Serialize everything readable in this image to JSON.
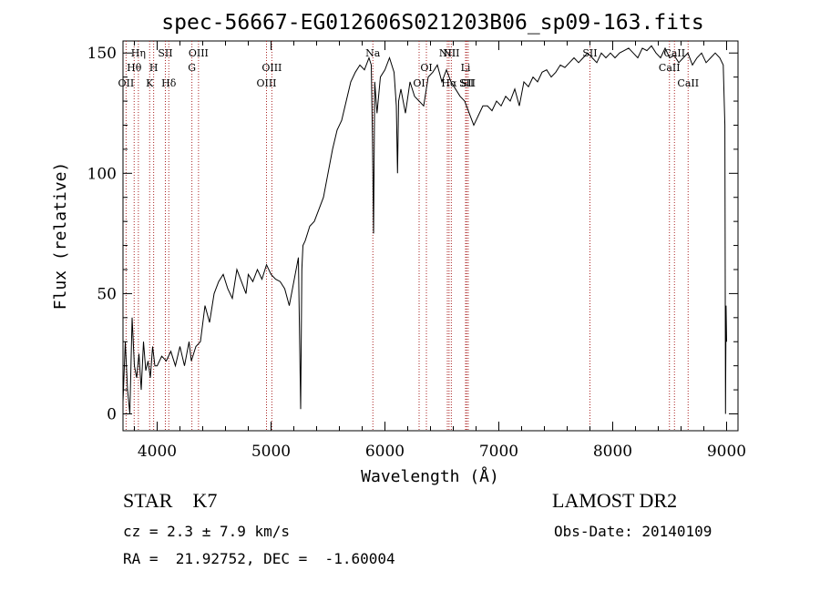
{
  "chart_data": {
    "type": "line",
    "title": "spec-56667-EG012606S021203B06_sp09-163.fits",
    "xlabel": "Wavelength (Å)",
    "ylabel": "Flux (relative)",
    "xlim": [
      3700,
      9100
    ],
    "ylim": [
      -7,
      155
    ],
    "x_ticks": [
      4000,
      5000,
      6000,
      7000,
      8000,
      9000
    ],
    "y_ticks": [
      0,
      50,
      100,
      150
    ],
    "grid": false,
    "series": [
      {
        "color": "#000000",
        "x": [
          3700,
          3720,
          3740,
          3760,
          3780,
          3800,
          3820,
          3840,
          3860,
          3880,
          3900,
          3920,
          3940,
          3960,
          3980,
          4000,
          4040,
          4080,
          4120,
          4160,
          4200,
          4240,
          4280,
          4300,
          4340,
          4380,
          4420,
          4460,
          4500,
          4540,
          4580,
          4620,
          4660,
          4700,
          4740,
          4780,
          4800,
          4840,
          4880,
          4920,
          4960,
          5000,
          5040,
          5080,
          5120,
          5160,
          5200,
          5240,
          5260,
          5270,
          5280,
          5300,
          5340,
          5380,
          5420,
          5460,
          5500,
          5540,
          5580,
          5620,
          5660,
          5700,
          5740,
          5780,
          5820,
          5860,
          5880,
          5890,
          5900,
          5910,
          5930,
          5960,
          6000,
          6040,
          6080,
          6100,
          6110,
          6120,
          6140,
          6180,
          6220,
          6260,
          6300,
          6340,
          6380,
          6420,
          6460,
          6500,
          6540,
          6580,
          6620,
          6660,
          6700,
          6740,
          6780,
          6820,
          6860,
          6900,
          6940,
          6980,
          7020,
          7060,
          7100,
          7140,
          7180,
          7220,
          7260,
          7300,
          7340,
          7380,
          7420,
          7460,
          7500,
          7540,
          7580,
          7620,
          7660,
          7700,
          7740,
          7780,
          7820,
          7860,
          7900,
          7940,
          7980,
          8020,
          8060,
          8100,
          8140,
          8180,
          8220,
          8260,
          8300,
          8340,
          8380,
          8420,
          8460,
          8500,
          8540,
          8580,
          8620,
          8660,
          8700,
          8740,
          8780,
          8820,
          8860,
          8900,
          8940,
          8970,
          8985,
          8990,
          8995,
          9000
        ],
        "y": [
          5,
          30,
          10,
          0,
          40,
          20,
          15,
          25,
          10,
          30,
          18,
          22,
          15,
          28,
          20,
          20,
          24,
          22,
          26,
          20,
          28,
          20,
          30,
          22,
          28,
          30,
          45,
          38,
          50,
          55,
          58,
          52,
          48,
          60,
          55,
          50,
          58,
          55,
          60,
          56,
          62,
          58,
          56,
          55,
          52,
          45,
          55,
          65,
          2,
          60,
          70,
          72,
          78,
          80,
          85,
          90,
          100,
          110,
          118,
          122,
          130,
          138,
          142,
          145,
          143,
          148,
          145,
          115,
          75,
          138,
          125,
          140,
          143,
          148,
          142,
          128,
          100,
          130,
          135,
          125,
          138,
          132,
          130,
          128,
          140,
          142,
          145,
          138,
          143,
          138,
          135,
          132,
          130,
          125,
          120,
          124,
          128,
          128,
          126,
          130,
          128,
          132,
          130,
          135,
          128,
          138,
          136,
          140,
          138,
          142,
          143,
          140,
          142,
          145,
          144,
          146,
          148,
          146,
          148,
          150,
          148,
          146,
          150,
          148,
          150,
          148,
          150,
          151,
          152,
          150,
          148,
          152,
          151,
          153,
          150,
          148,
          152,
          148,
          149,
          146,
          148,
          150,
          145,
          148,
          150,
          146,
          148,
          150,
          148,
          145,
          120,
          0,
          45,
          30
        ]
      }
    ],
    "lines": [
      {
        "label": "OII",
        "x": 3727,
        "row": 3,
        "color": "#aa2222"
      },
      {
        "label": "Hθ",
        "x": 3798,
        "row": 2,
        "color": "#aa2222"
      },
      {
        "label": "Hη",
        "x": 3835,
        "row": 1,
        "color": "#aa2222"
      },
      {
        "label": "K",
        "x": 3934,
        "row": 3,
        "color": "#aa2222"
      },
      {
        "label": "H",
        "x": 3969,
        "row": 2,
        "color": "#aa2222"
      },
      {
        "label": "SII",
        "x": 4072,
        "row": 1,
        "color": "#aa2222"
      },
      {
        "label": "Hδ",
        "x": 4102,
        "row": 3,
        "color": "#aa2222"
      },
      {
        "label": "G",
        "x": 4305,
        "row": 2,
        "color": "#aa2222"
      },
      {
        "label": "OIII",
        "x": 4363,
        "row": 1,
        "color": "#aa2222"
      },
      {
        "label": "OIII",
        "x": 4960,
        "row": 3,
        "color": "#aa2222"
      },
      {
        "label": "OIII",
        "x": 5007,
        "row": 2,
        "color": "#aa2222"
      },
      {
        "label": "Na",
        "x": 5894,
        "row": 1,
        "color": "#aa2222"
      },
      {
        "label": "OI",
        "x": 6300,
        "row": 3,
        "color": "#aa2222"
      },
      {
        "label": "OI",
        "x": 6364,
        "row": 2,
        "color": "#aa2222"
      },
      {
        "label": "NII",
        "x": 6548,
        "row": 1,
        "color": "#aa2222"
      },
      {
        "label": "Hα",
        "x": 6563,
        "row": 3,
        "color": "#aa2222"
      },
      {
        "label": "NII",
        "x": 6583,
        "row": 1,
        "color": "#aa2222"
      },
      {
        "label": "Li",
        "x": 6708,
        "row": 2,
        "color": "#aa2222"
      },
      {
        "label": "SII",
        "x": 6717,
        "row": 3,
        "color": "#aa2222"
      },
      {
        "label": "SII",
        "x": 6731,
        "row": 3,
        "color": "#aa2222"
      },
      {
        "label": "SII",
        "x": 7800,
        "row": 1,
        "color": "#aa2222"
      },
      {
        "label": "CaII",
        "x": 8498,
        "row": 2,
        "color": "#aa2222"
      },
      {
        "label": "CaII",
        "x": 8542,
        "row": 1,
        "color": "#aa2222"
      },
      {
        "label": "CaII",
        "x": 8662,
        "row": 3,
        "color": "#aa2222"
      }
    ]
  },
  "info": {
    "classification": "STAR    K7",
    "survey": "LAMOST DR2",
    "redshift": "cz = 2.3 ± 7.9 km/s",
    "obs_date": "Obs-Date: 20140109",
    "coords": "RA =  21.92752, DEC =  -1.60004"
  }
}
